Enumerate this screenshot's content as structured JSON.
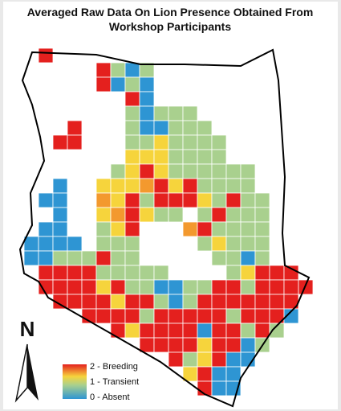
{
  "map": {
    "title": {
      "line1": "Averaged Raw Data On Lion Presence Obtained From",
      "line2": "Workshop Participants"
    },
    "north": "N",
    "legend": [
      "2 - Breeding",
      "1 - Transient",
      "0 - Absent"
    ],
    "color_stops": [
      {
        "value": 0,
        "color": "#2e95d3"
      },
      {
        "value": 0.5,
        "color": "#7cc3c0"
      },
      {
        "value": 1,
        "color": "#a9d08e"
      },
      {
        "value": 1.5,
        "color": "#f6d43c"
      },
      {
        "value": 1.75,
        "color": "#f28a2a"
      },
      {
        "value": 2,
        "color": "#e4201e"
      }
    ],
    "grid": [
      [
        null,
        2,
        null,
        null,
        null,
        null,
        null,
        null,
        null,
        null,
        null,
        null,
        null,
        null,
        null,
        null,
        null,
        null,
        null,
        null
      ],
      [
        null,
        null,
        null,
        null,
        null,
        2,
        1,
        0,
        1,
        null,
        null,
        null,
        null,
        null,
        null,
        null,
        null,
        null,
        null,
        null
      ],
      [
        null,
        null,
        null,
        null,
        null,
        2,
        0,
        1,
        0,
        null,
        null,
        null,
        null,
        null,
        null,
        null,
        null,
        null,
        null,
        null
      ],
      [
        null,
        null,
        null,
        null,
        null,
        null,
        null,
        2,
        0,
        null,
        null,
        null,
        null,
        null,
        null,
        null,
        null,
        null,
        null,
        null
      ],
      [
        null,
        null,
        null,
        null,
        null,
        null,
        null,
        1,
        0,
        1,
        1,
        1,
        null,
        null,
        null,
        null,
        null,
        null,
        null,
        null
      ],
      [
        null,
        null,
        null,
        2,
        null,
        null,
        null,
        1,
        0,
        0,
        1,
        1,
        1,
        null,
        null,
        null,
        null,
        null,
        null,
        null
      ],
      [
        null,
        null,
        2,
        2,
        null,
        null,
        null,
        1,
        1,
        1.5,
        1,
        1,
        1,
        1,
        null,
        null,
        null,
        null,
        null,
        null
      ],
      [
        null,
        null,
        null,
        null,
        null,
        null,
        null,
        1.5,
        1.5,
        1.5,
        1,
        1,
        1,
        1,
        null,
        null,
        null,
        null,
        null,
        null
      ],
      [
        null,
        null,
        null,
        null,
        null,
        null,
        1,
        1.5,
        2,
        1.5,
        1,
        1,
        1,
        1,
        1,
        1,
        null,
        null,
        null,
        null
      ],
      [
        null,
        null,
        0,
        null,
        null,
        1.5,
        1.5,
        1.5,
        1.7,
        2,
        1.5,
        2,
        1,
        1,
        1,
        1,
        null,
        null,
        null,
        null
      ],
      [
        null,
        0,
        0,
        null,
        null,
        1.7,
        1.5,
        2,
        1,
        2,
        2,
        2,
        1.5,
        1,
        2,
        1,
        1,
        null,
        null,
        null
      ],
      [
        null,
        null,
        0,
        null,
        null,
        1.5,
        1.7,
        2,
        1.5,
        1,
        1,
        null,
        1,
        2,
        1,
        1,
        1,
        null,
        null,
        null
      ],
      [
        null,
        0,
        0,
        null,
        null,
        1,
        1.5,
        2,
        null,
        null,
        null,
        1.7,
        2,
        1,
        1,
        1,
        1,
        null,
        null,
        null
      ],
      [
        0,
        0,
        0,
        0,
        null,
        1,
        1,
        1,
        null,
        null,
        null,
        null,
        1,
        1.5,
        1,
        1,
        1,
        null,
        null,
        null
      ],
      [
        0,
        0,
        1,
        1,
        1,
        2,
        1,
        1,
        null,
        null,
        null,
        null,
        null,
        1,
        1,
        0,
        1,
        null,
        null,
        null
      ],
      [
        null,
        2,
        2,
        2,
        2,
        1,
        1,
        1,
        1,
        1,
        null,
        null,
        null,
        null,
        1,
        1.5,
        2,
        2,
        2,
        null
      ],
      [
        null,
        2,
        2,
        2,
        2,
        1.5,
        2,
        1,
        1,
        0,
        0,
        1,
        1,
        2,
        2,
        1,
        2,
        2,
        2,
        2
      ],
      [
        null,
        null,
        2,
        2,
        2,
        2,
        1.5,
        2,
        2,
        1,
        0,
        1,
        2,
        2,
        2,
        2,
        2,
        2,
        2,
        null
      ],
      [
        null,
        null,
        null,
        null,
        2,
        2,
        2,
        2,
        1,
        2,
        2,
        2,
        2,
        2,
        1,
        2,
        2,
        2,
        0,
        null
      ],
      [
        null,
        null,
        null,
        null,
        null,
        null,
        2,
        1.5,
        2,
        2,
        2,
        2,
        0,
        2,
        2,
        1,
        2,
        1,
        null,
        null
      ],
      [
        null,
        null,
        null,
        null,
        null,
        null,
        null,
        null,
        2,
        2,
        2,
        2,
        1.5,
        2,
        2,
        0,
        1,
        null,
        null,
        null
      ],
      [
        null,
        null,
        null,
        null,
        null,
        null,
        null,
        null,
        null,
        null,
        2,
        1,
        1.5,
        2,
        0,
        0,
        null,
        null,
        null,
        null
      ],
      [
        null,
        null,
        null,
        null,
        null,
        null,
        null,
        null,
        null,
        null,
        null,
        1.5,
        2,
        0,
        0,
        null,
        null,
        null,
        null,
        null
      ],
      [
        null,
        null,
        null,
        null,
        null,
        null,
        null,
        null,
        null,
        null,
        null,
        null,
        2,
        0,
        0,
        null,
        null,
        null,
        null,
        null
      ]
    ]
  }
}
